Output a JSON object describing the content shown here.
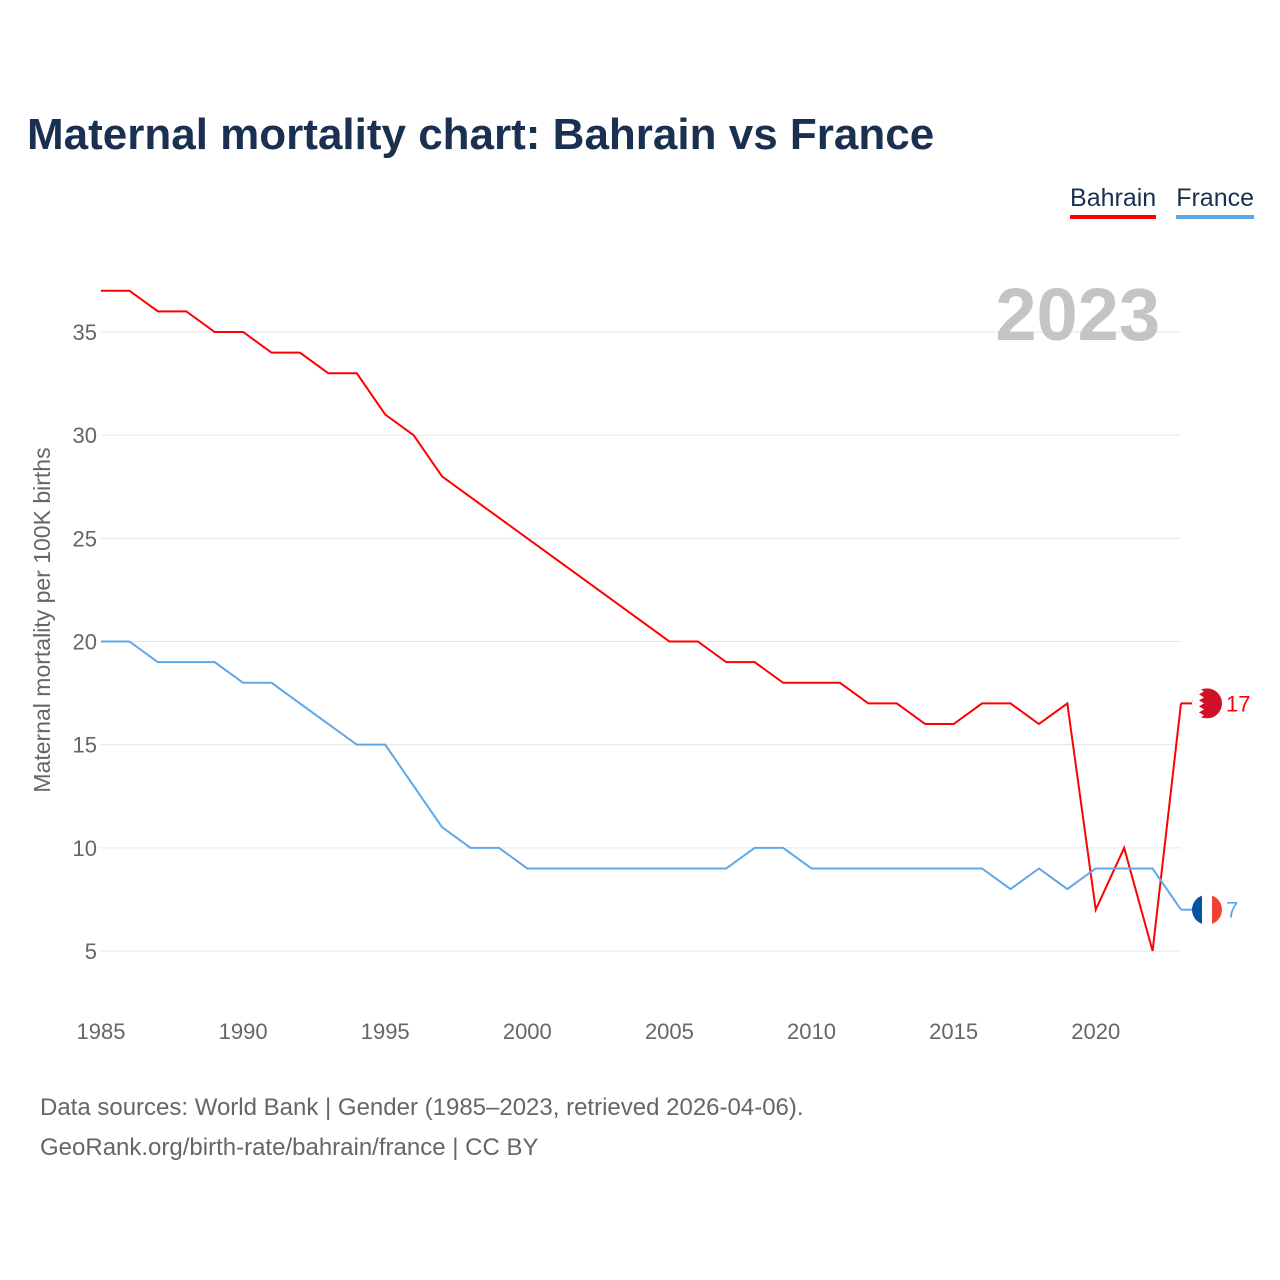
{
  "title": "Maternal mortality chart: Bahrain vs France",
  "year_label": "2023",
  "footer": {
    "line1": "Data sources: World Bank | Gender (1985–2023, retrieved 2026-04-06).",
    "line2": "GeoRank.org/birth-rate/bahrain/france | CC BY"
  },
  "chart_data": {
    "type": "line",
    "title": "Maternal mortality chart: Bahrain vs France",
    "xlabel": "",
    "ylabel": "Maternal mortality per 100K births",
    "xlim": [
      1985,
      2023
    ],
    "ylim": [
      2,
      38
    ],
    "x_ticks": [
      1985,
      1990,
      1995,
      2000,
      2005,
      2010,
      2015,
      2020
    ],
    "y_ticks": [
      5,
      10,
      15,
      20,
      25,
      30,
      35
    ],
    "grid": true,
    "legend_position": "top-right",
    "x": [
      1985,
      1986,
      1987,
      1988,
      1989,
      1990,
      1991,
      1992,
      1993,
      1994,
      1995,
      1996,
      1997,
      1998,
      1999,
      2000,
      2001,
      2002,
      2003,
      2004,
      2005,
      2006,
      2007,
      2008,
      2009,
      2010,
      2011,
      2012,
      2013,
      2014,
      2015,
      2016,
      2017,
      2018,
      2019,
      2020,
      2021,
      2022,
      2023
    ],
    "series": [
      {
        "name": "Bahrain",
        "color": "#ff0000",
        "end_label": "17",
        "values": [
          37,
          37,
          36,
          36,
          35,
          35,
          34,
          34,
          33,
          33,
          31,
          30,
          28,
          27,
          26,
          25,
          24,
          23,
          22,
          21,
          20,
          20,
          19,
          19,
          18,
          18,
          18,
          17,
          17,
          16,
          16,
          17,
          17,
          16,
          17,
          7,
          10,
          5,
          17
        ]
      },
      {
        "name": "France",
        "color": "#5fa8e8",
        "end_label": "7",
        "values": [
          20,
          20,
          19,
          19,
          19,
          18,
          18,
          17,
          16,
          15,
          15,
          13,
          11,
          10,
          10,
          9,
          9,
          9,
          9,
          9,
          9,
          9,
          9,
          10,
          10,
          9,
          9,
          9,
          9,
          9,
          9,
          9,
          8,
          9,
          8,
          9,
          9,
          9,
          7
        ]
      }
    ]
  }
}
